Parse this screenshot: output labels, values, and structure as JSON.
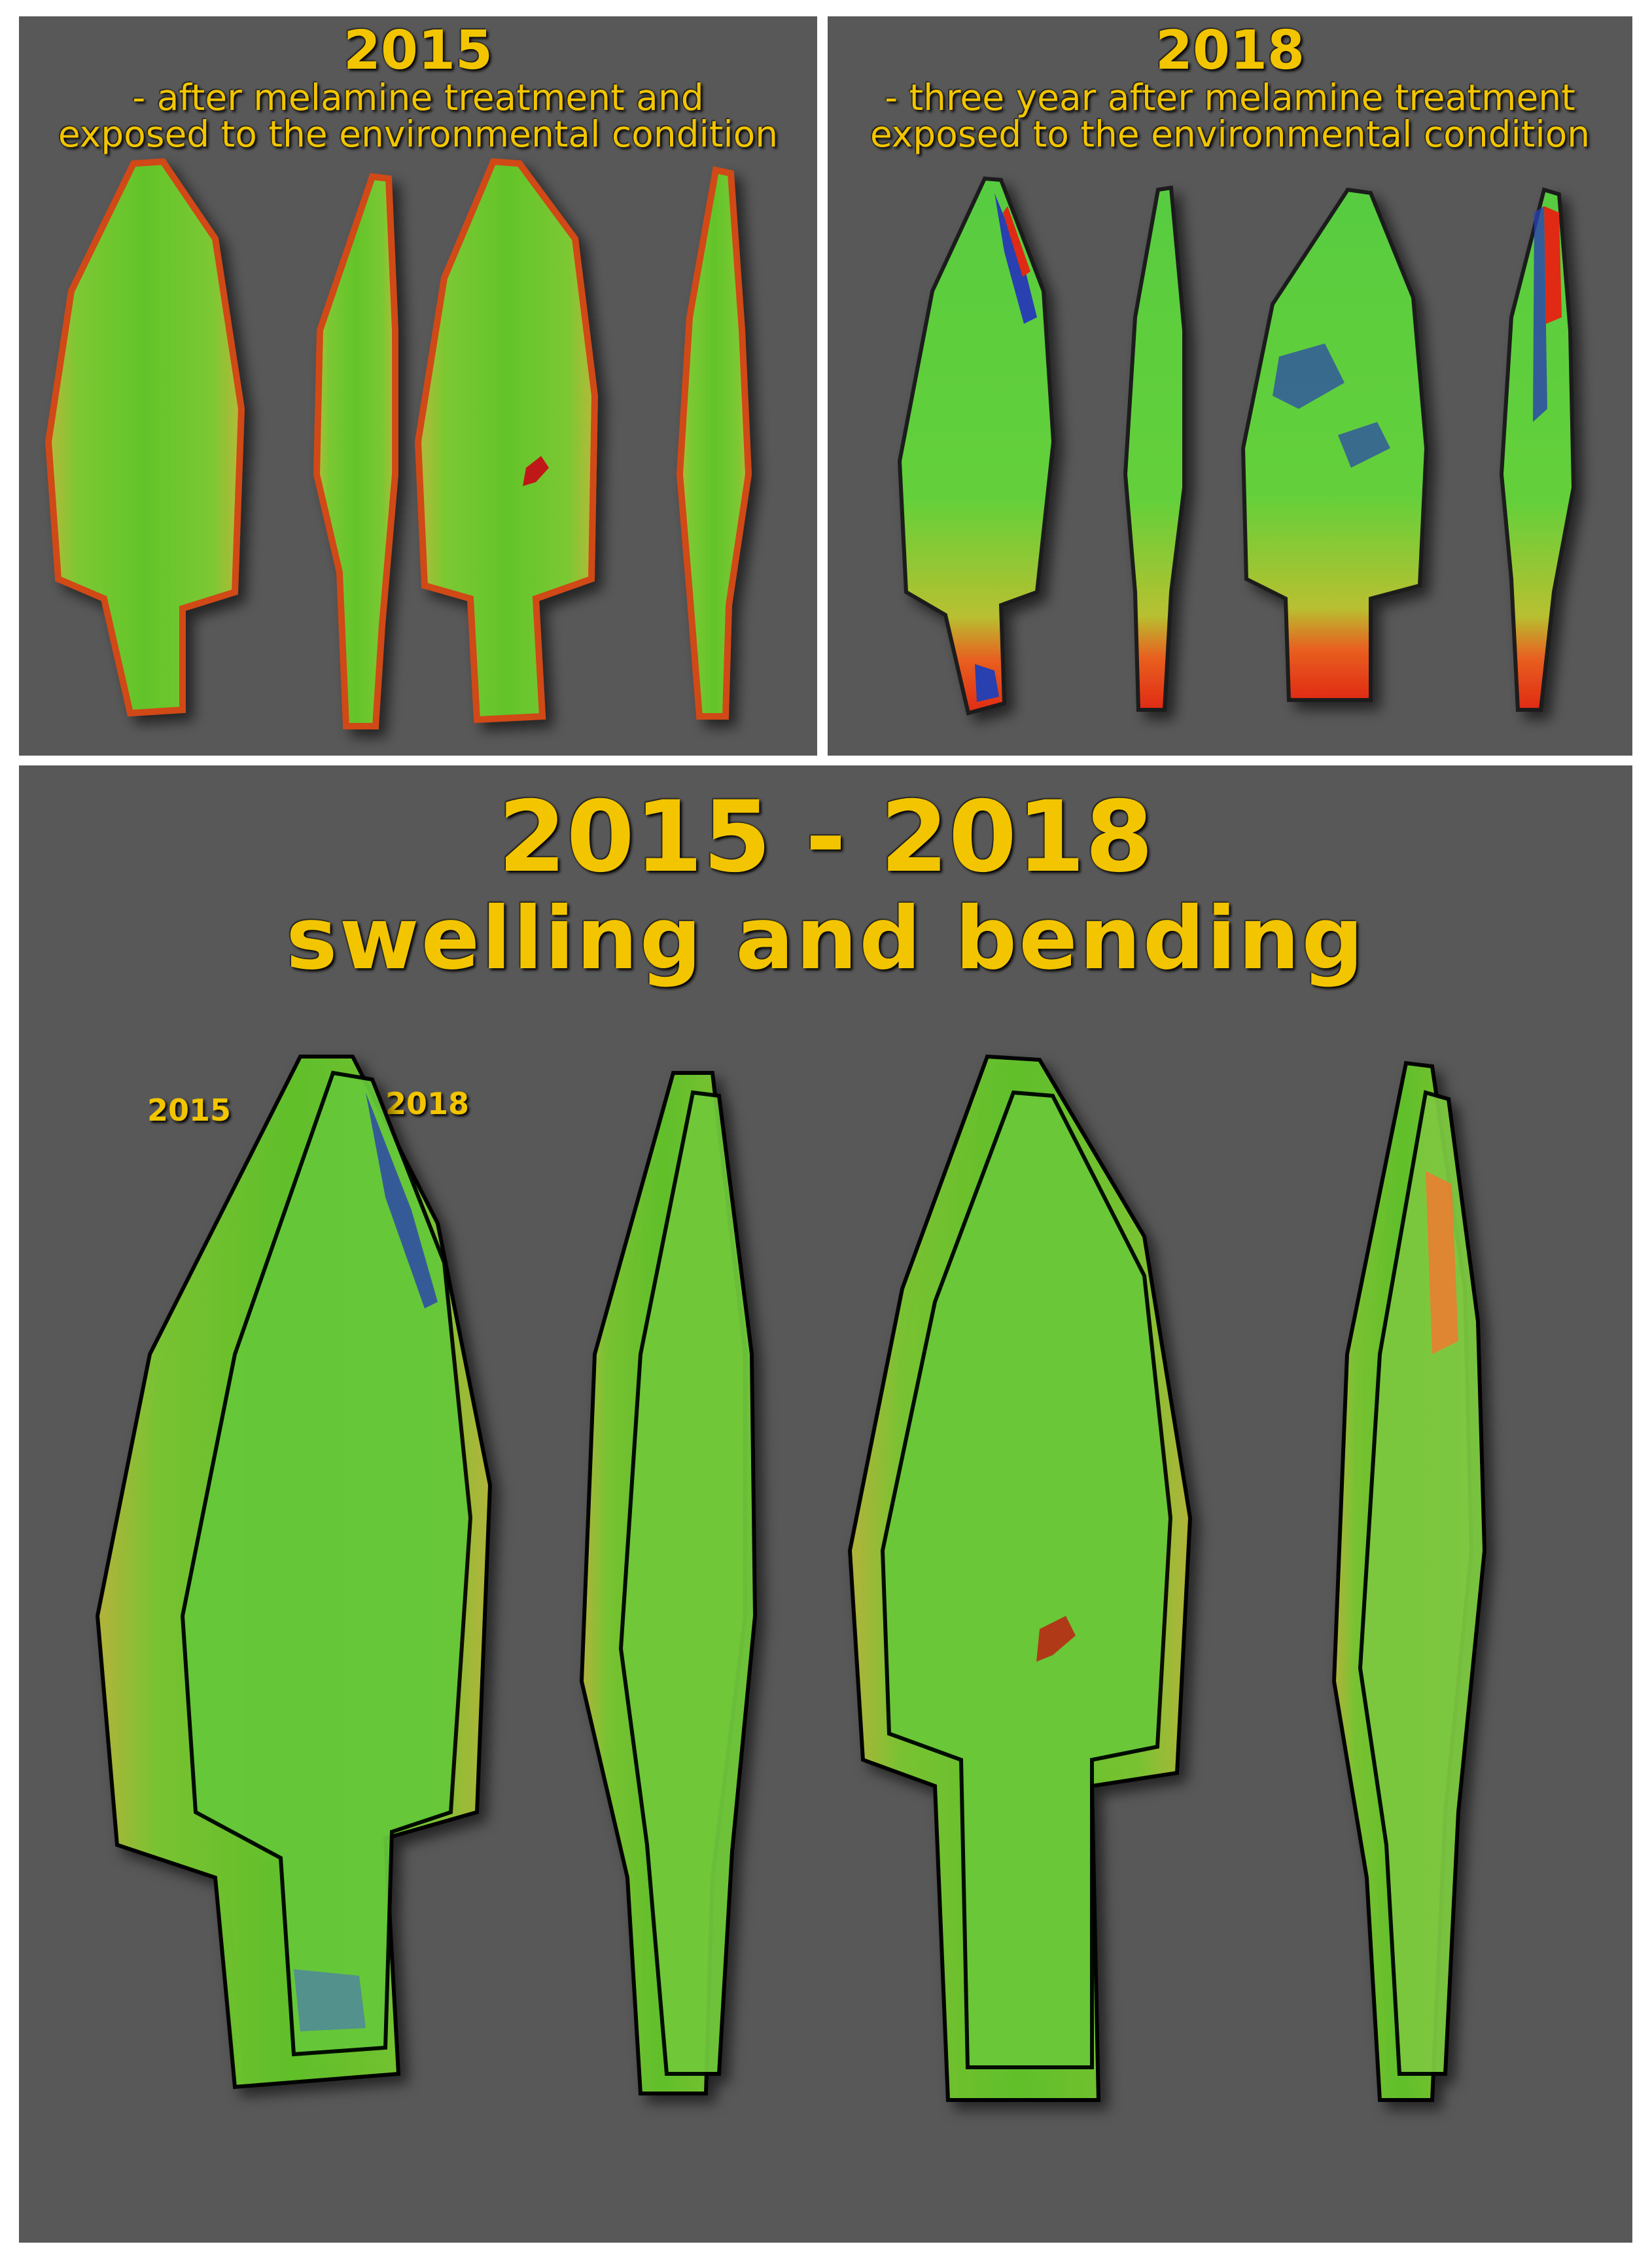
{
  "panel_2015": {
    "year": "2015",
    "caption_line1": "- after melamine treatment and",
    "caption_line2": "exposed to the environmental condition"
  },
  "panel_2018": {
    "year": "2018",
    "caption_line1": "- three year after melamine treatment",
    "caption_line2": "exposed to the environmental condition"
  },
  "panel_compare": {
    "title": "2015 - 2018",
    "subtitle": "swelling and bending",
    "overlay_label_2015": "2015",
    "overlay_label_2018": "2018"
  },
  "colors": {
    "background": "#585858",
    "text": "#f2c500",
    "surface_green": "#6ccc2a",
    "edge_red": "#e03a1a",
    "deviation_blue": "#2840b0"
  }
}
